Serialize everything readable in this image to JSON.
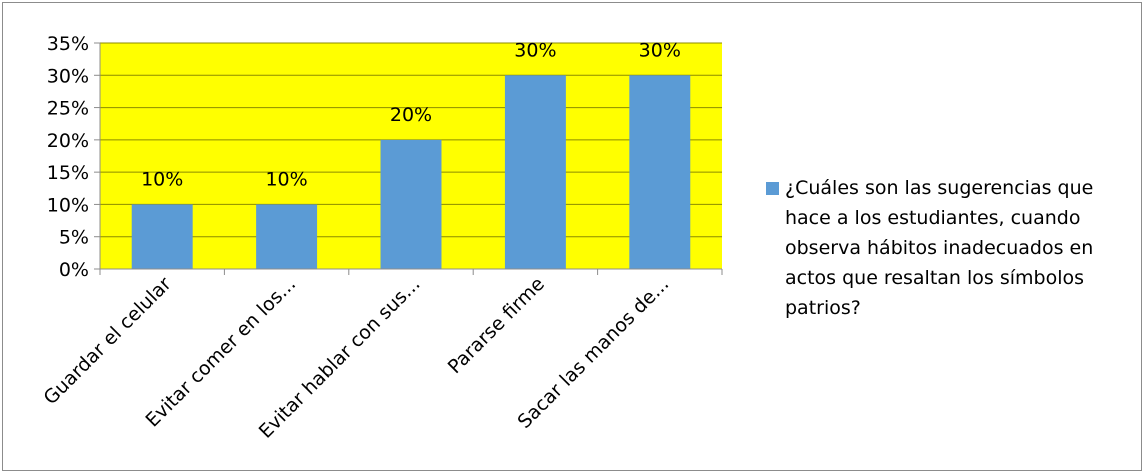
{
  "chart_data": {
    "type": "bar",
    "categories": [
      "Guardar el celular",
      "Evitar comer en los...",
      "Evitar hablar con sus...",
      "Pararse firme",
      "Sacar las manos de..."
    ],
    "series": [
      {
        "name": "¿Cuáles son las sugerencias que hace a los estudiantes, cuando observa hábitos inadecuados en actos que resaltan los símbolos patrios?",
        "values": [
          10,
          10,
          20,
          30,
          30
        ],
        "data_labels": [
          "10%",
          "10%",
          "20%",
          "30%",
          "30%"
        ]
      }
    ],
    "ylim": [
      0,
      35
    ],
    "yticks": [
      0,
      5,
      10,
      15,
      20,
      25,
      30,
      35
    ],
    "ytick_labels": [
      "0%",
      "5%",
      "10%",
      "15%",
      "20%",
      "25%",
      "30%",
      "35%"
    ],
    "grid": true,
    "legend_position": "right",
    "colors": {
      "plot_background": "#FFFF00",
      "bar": "#5B9BD5",
      "gridline": "#8B8B00",
      "axis": "#8c8c8c"
    }
  }
}
